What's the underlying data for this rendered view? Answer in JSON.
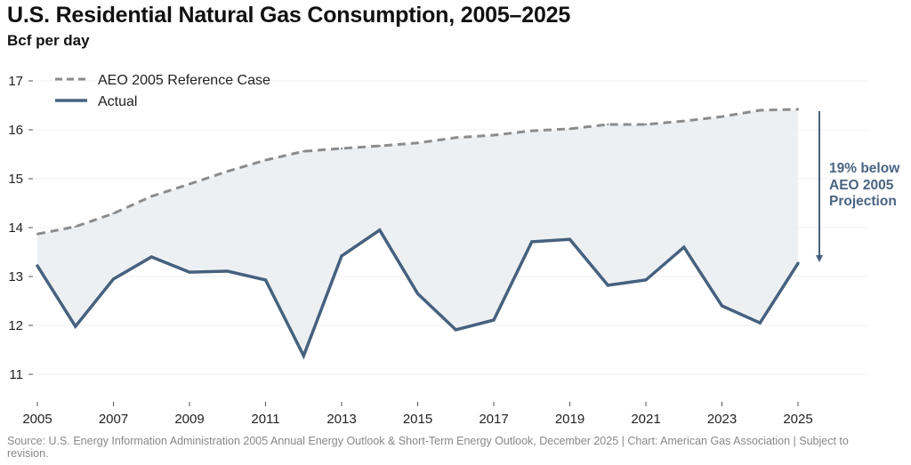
{
  "title": "U.S. Residential Natural Gas Consumption, 2005–2025",
  "subtitle": "Bcf per day",
  "footer": "Source: U.S. Energy Information Administration 2005 Annual Energy Outlook & Short-Term Energy Outlook, December 2025 | Chart: American Gas Association | Subject to revision.",
  "annotation": {
    "line1": "19% below",
    "line2": "AEO 2005",
    "line3": "Projection"
  },
  "colors": {
    "actual": "#46617f",
    "reference": "#8c8c8c",
    "fill": "#edf0f3",
    "arrow": "#46617f",
    "grid": "#f2f2f2"
  },
  "chart_data": {
    "type": "line",
    "title": "U.S. Residential Natural Gas Consumption, 2005–2025",
    "ylabel": "Bcf per day",
    "xlabel": "",
    "x": [
      2005,
      2006,
      2007,
      2008,
      2009,
      2010,
      2011,
      2012,
      2013,
      2014,
      2015,
      2016,
      2017,
      2018,
      2019,
      2020,
      2021,
      2022,
      2023,
      2024,
      2025
    ],
    "xticks": [
      "2005",
      "2007",
      "2009",
      "2011",
      "2013",
      "2015",
      "2017",
      "2019",
      "2021",
      "2023",
      "2025"
    ],
    "yticks": [
      "11",
      "12",
      "13",
      "14",
      "15",
      "16",
      "17"
    ],
    "ylim": [
      11,
      17
    ],
    "xlim": [
      2005,
      2025
    ],
    "grid": true,
    "legend": "top-left",
    "series": [
      {
        "name": "AEO 2005 Reference Case",
        "style": "dashed",
        "values": [
          13.87,
          14.02,
          14.29,
          14.64,
          14.89,
          15.15,
          15.38,
          15.56,
          15.62,
          15.67,
          15.73,
          15.84,
          15.89,
          15.98,
          16.02,
          16.11,
          16.11,
          16.18,
          16.27,
          16.4,
          16.42
        ]
      },
      {
        "name": "Actual",
        "style": "solid",
        "values": [
          13.22,
          11.98,
          12.95,
          13.4,
          13.09,
          13.11,
          12.93,
          11.38,
          13.42,
          13.95,
          12.65,
          11.91,
          12.11,
          13.71,
          13.76,
          12.82,
          12.93,
          13.6,
          12.4,
          12.05,
          13.27
        ]
      }
    ],
    "annotation": "19% below AEO 2005 Projection",
    "shaded_between_series": true
  }
}
